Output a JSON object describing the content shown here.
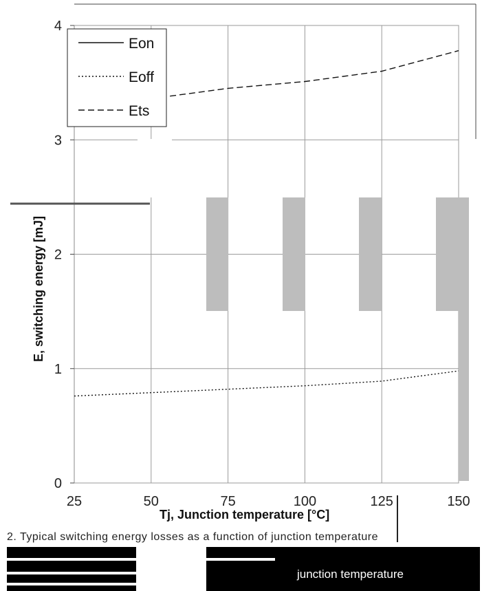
{
  "chart_data": {
    "type": "line",
    "xlabel": "Tj, Junction temperature [°C]",
    "ylabel": "E, switching energy [mJ]",
    "x_ticks": [
      "25",
      "50",
      "75",
      "100",
      "125",
      "150"
    ],
    "y_ticks": [
      "0",
      "1",
      "2",
      "3",
      "4"
    ],
    "xlim": [
      25,
      150
    ],
    "ylim": [
      0,
      4
    ],
    "grid": true,
    "legend_position": "top-left",
    "x": [
      25,
      50,
      75,
      100,
      125,
      150
    ],
    "series": [
      {
        "name": "Eon",
        "dash": "solid",
        "values": [
          null,
          null,
          null,
          null,
          null,
          null
        ]
      },
      {
        "name": "Eoff",
        "dash": "dotted",
        "values": [
          0.76,
          0.79,
          0.82,
          0.85,
          0.89,
          0.98
        ]
      },
      {
        "name": "Ets",
        "dash": "dashed",
        "values": [
          3.29,
          3.36,
          3.45,
          3.51,
          3.6,
          3.78
        ]
      }
    ]
  },
  "caption": "2. Typical switching energy losses as a function of junction temperature",
  "footer_text": "junction temperature"
}
